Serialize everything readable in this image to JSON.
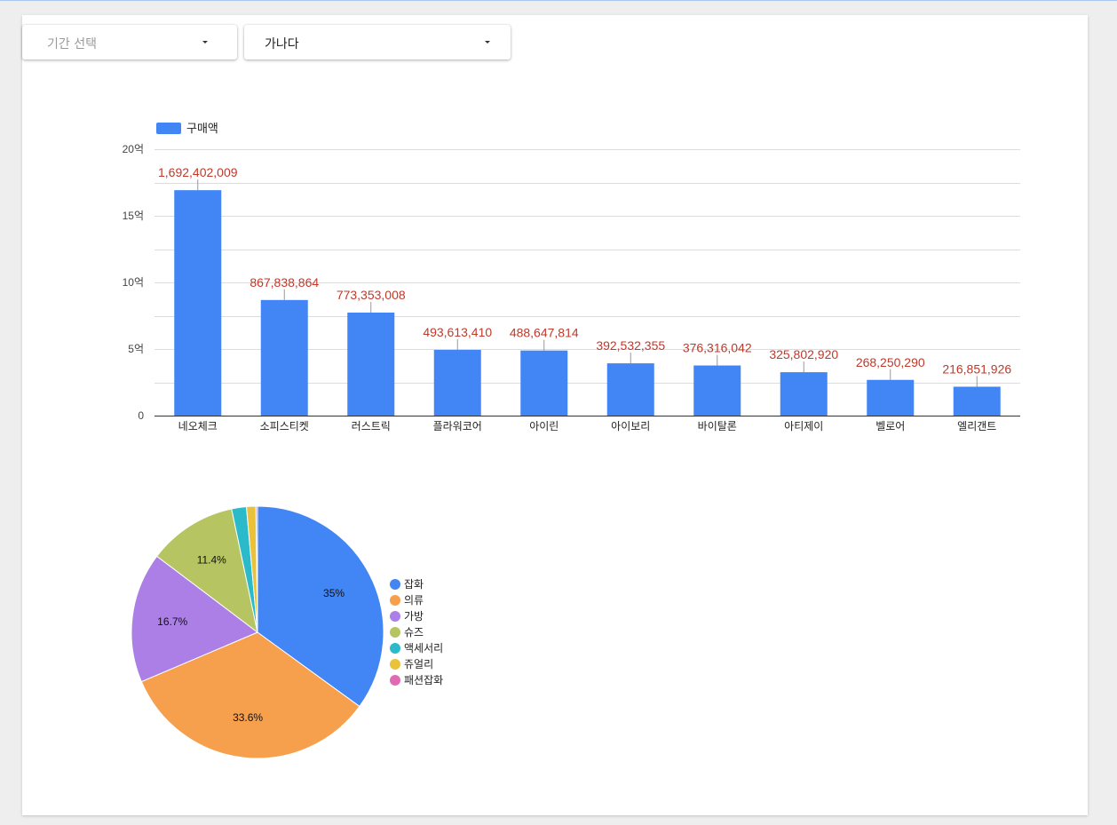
{
  "filters": {
    "period": {
      "placeholder": "기간 선택"
    },
    "sort": {
      "value": "가나다"
    }
  },
  "chart_data": [
    {
      "type": "bar",
      "legend": {
        "label": "구매액",
        "position": "top-left"
      },
      "categories": [
        "네오체크",
        "소피스티켓",
        "러스트릭",
        "플라워코어",
        "아이린",
        "아이보리",
        "바이탈론",
        "아티제이",
        "벨로어",
        "엘리갠트"
      ],
      "values": [
        1692402009,
        867838864,
        773353008,
        493613410,
        488647814,
        392532355,
        376316042,
        325802920,
        268250290,
        216851926
      ],
      "data_labels": [
        "1,692,402,009",
        "867,838,864",
        "773,353,008",
        "493,613,410",
        "488,647,814",
        "392,532,355",
        "376,316,042",
        "325,802,920",
        "268,250,290",
        "216,851,926"
      ],
      "ylim": [
        0,
        2000000000
      ],
      "yticks": [
        {
          "value": 0,
          "label": "0"
        },
        {
          "value": 500000000,
          "label": "5억"
        },
        {
          "value": 1000000000,
          "label": "10억"
        },
        {
          "value": 1500000000,
          "label": "15억"
        },
        {
          "value": 2000000000,
          "label": "20억"
        }
      ],
      "grid": true,
      "color": "#4285f4",
      "label_color": "#c0392b"
    },
    {
      "type": "pie",
      "legend_position": "right",
      "slices": [
        {
          "label": "잡화",
          "value": 35,
          "pct_label": "35%",
          "color": "#4285f4"
        },
        {
          "label": "의류",
          "value": 33.6,
          "pct_label": "33.6%",
          "color": "#f6a04d"
        },
        {
          "label": "가방",
          "value": 16.7,
          "pct_label": "16.7%",
          "color": "#ab7fe6"
        },
        {
          "label": "슈즈",
          "value": 11.4,
          "pct_label": "11.4%",
          "color": "#b6c562"
        },
        {
          "label": "액세서리",
          "value": 1.9,
          "pct_label": "",
          "color": "#2bbac9"
        },
        {
          "label": "쥬얼리",
          "value": 1.2,
          "pct_label": "",
          "color": "#e9c23a"
        },
        {
          "label": "패션잡화",
          "value": 0.2,
          "pct_label": "",
          "color": "#e06bb3"
        }
      ]
    }
  ]
}
